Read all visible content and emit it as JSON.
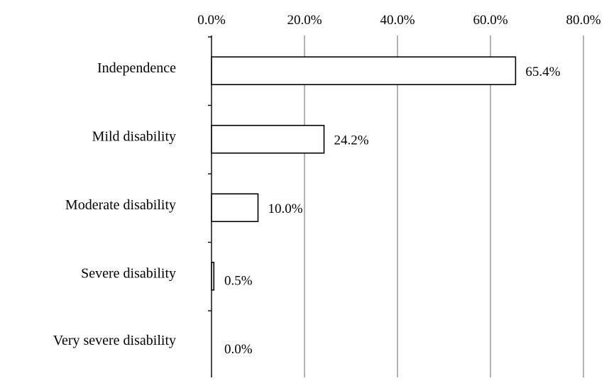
{
  "chart_data": {
    "type": "bar",
    "orientation": "horizontal",
    "categories": [
      "Independence",
      "Mild disability",
      "Moderate disability",
      "Severe disability",
      "Very severe disability"
    ],
    "values": [
      65.4,
      24.2,
      10.0,
      0.5,
      0.0
    ],
    "data_labels": [
      "65.4%",
      "24.2%",
      "10.0%",
      "0.5%",
      "0.0%"
    ],
    "x_ticks": [
      0,
      20,
      40,
      60,
      80
    ],
    "x_tick_labels": [
      "0.0%",
      "20.0%",
      "40.0%",
      "60.0%",
      "80.0%"
    ],
    "xlim": [
      0,
      80
    ],
    "x_axis_position": "top",
    "grid": "vertical",
    "legend": "none",
    "bar_fill": "#ffffff",
    "bar_stroke": "#000000",
    "grid_color": "#7f7f7f",
    "title": "",
    "xlabel": "",
    "ylabel": ""
  }
}
